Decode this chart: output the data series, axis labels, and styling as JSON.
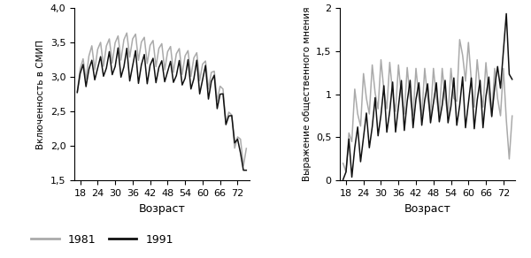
{
  "left_ylabel": "Включенность в СМИП",
  "right_ylabel": "Выражение общественного мнения",
  "xlabel": "Возраст",
  "left_ylim": [
    1.5,
    4.0
  ],
  "right_ylim": [
    0,
    2.0
  ],
  "left_yticks": [
    1.5,
    2.0,
    2.5,
    3.0,
    3.5,
    4.0
  ],
  "right_yticks": [
    0,
    0.5,
    1.0,
    1.5,
    2.0
  ],
  "xticks": [
    18,
    24,
    30,
    36,
    42,
    48,
    54,
    60,
    66,
    72
  ],
  "xlim": [
    16,
    76
  ],
  "color_1981": "#aaaaaa",
  "color_1991": "#111111",
  "legend_1981": "1981",
  "legend_1991": "1991",
  "line_width": 1.1
}
